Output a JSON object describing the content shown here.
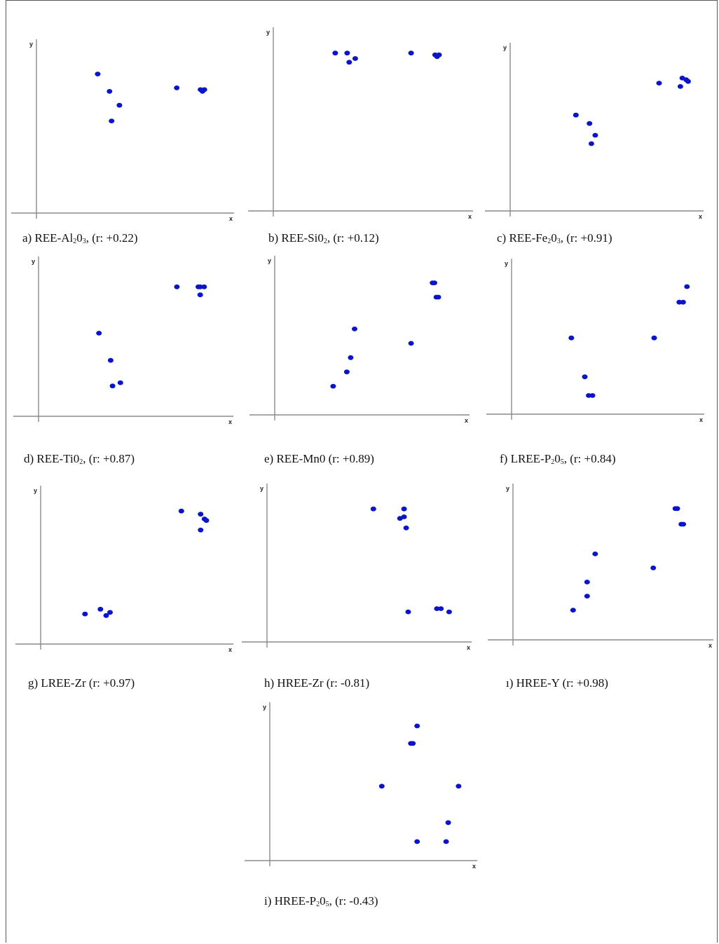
{
  "colors": {
    "point": "#0a14c8",
    "axis": "#8a8a8a",
    "frame": "#555555"
  },
  "chart_data": [
    {
      "id": "a",
      "type": "scatter",
      "xlabel": "x",
      "ylabel": "y",
      "caption": {
        "prefix": "a) REE-Al",
        "sub": "2",
        "mid": "0",
        "sub2": "3",
        "suffix": " (r: +0.22)"
      },
      "x": [
        0.31,
        0.37,
        0.42,
        0.38,
        0.71,
        0.83,
        0.84,
        0.85
      ],
      "y": [
        0.8,
        0.7,
        0.62,
        0.53,
        0.72,
        0.71,
        0.7,
        0.71
      ]
    },
    {
      "id": "b",
      "type": "scatter",
      "xlabel": "x",
      "ylabel": "y",
      "caption": {
        "prefix": "b) REE-Si0",
        "sub": "2",
        "mid": "",
        "sub2": "",
        "suffix": " (r: +0.12)"
      },
      "x": [
        0.31,
        0.37,
        0.38,
        0.41,
        0.69,
        0.81,
        0.82,
        0.83
      ],
      "y": [
        0.86,
        0.86,
        0.81,
        0.83,
        0.86,
        0.85,
        0.84,
        0.85
      ]
    },
    {
      "id": "c",
      "type": "scatter",
      "xlabel": "x",
      "ylabel": "y",
      "caption": {
        "prefix": "c)  REE-Fe",
        "sub": "2",
        "mid": "0",
        "sub2": "3",
        "suffix": " (r: +0.91)"
      },
      "x": [
        0.34,
        0.41,
        0.44,
        0.42,
        0.77,
        0.89,
        0.91,
        0.88,
        0.92
      ],
      "y": [
        0.57,
        0.52,
        0.45,
        0.4,
        0.76,
        0.79,
        0.78,
        0.74,
        0.77
      ]
    },
    {
      "id": "d",
      "type": "scatter",
      "xlabel": "x",
      "ylabel": "y",
      "caption": {
        "prefix": "d) REE-Ti0",
        "sub": "2",
        "mid": "",
        "sub2": "",
        "suffix": " (r: +0.87)"
      },
      "x": [
        0.31,
        0.37,
        0.42,
        0.38,
        0.71,
        0.82,
        0.83,
        0.85,
        0.83
      ],
      "y": [
        0.52,
        0.35,
        0.21,
        0.19,
        0.81,
        0.81,
        0.81,
        0.81,
        0.76
      ]
    },
    {
      "id": "e",
      "type": "scatter",
      "xlabel": "x",
      "ylabel": "y",
      "caption": {
        "prefix": "e) REE-Mn0",
        "sub": "",
        "mid": "",
        "sub2": "",
        "suffix": " (r: +0.89)"
      },
      "x": [
        0.3,
        0.37,
        0.39,
        0.41,
        0.7,
        0.81,
        0.82,
        0.83,
        0.84
      ],
      "y": [
        0.18,
        0.27,
        0.36,
        0.54,
        0.45,
        0.83,
        0.83,
        0.74,
        0.74
      ]
    },
    {
      "id": "f",
      "type": "scatter",
      "xlabel": "x",
      "ylabel": "y",
      "caption": {
        "prefix": "f) LREE-P",
        "sub": "2",
        "mid": "0",
        "sub2": "5",
        "suffix": " (r: +0.84)"
      },
      "x": [
        0.31,
        0.38,
        0.4,
        0.42,
        0.74,
        0.87,
        0.89,
        0.91
      ],
      "y": [
        0.49,
        0.24,
        0.12,
        0.12,
        0.49,
        0.72,
        0.72,
        0.82
      ]
    },
    {
      "id": "g",
      "type": "scatter",
      "xlabel": "x",
      "ylabel": "y",
      "caption": {
        "prefix": "g)  LREE-Zr",
        "sub": "",
        "mid": "",
        "sub2": "",
        "suffix": " (r: +0.97)"
      },
      "x": [
        0.23,
        0.31,
        0.34,
        0.36,
        0.73,
        0.83,
        0.85,
        0.86,
        0.83
      ],
      "y": [
        0.19,
        0.22,
        0.18,
        0.2,
        0.84,
        0.82,
        0.79,
        0.78,
        0.72
      ]
    },
    {
      "id": "h",
      "type": "scatter",
      "xlabel": "x",
      "ylabel": "y",
      "caption": {
        "prefix": "h) HREE-Zr",
        "sub": "",
        "mid": "",
        "sub2": "",
        "suffix": " (r: -0.81)"
      },
      "x": [
        0.52,
        0.65,
        0.67,
        0.67,
        0.68,
        0.69,
        0.83,
        0.85,
        0.89
      ],
      "y": [
        0.84,
        0.78,
        0.84,
        0.79,
        0.72,
        0.19,
        0.21,
        0.21,
        0.19
      ]
    },
    {
      "id": "i",
      "type": "scatter",
      "xlabel": "x",
      "ylabel": "y",
      "caption": {
        "prefix": "ı) HREE-Y",
        "sub": "",
        "mid": "",
        "sub2": "",
        "suffix": " (r: +0.98)"
      },
      "x": [
        0.3,
        0.37,
        0.37,
        0.41,
        0.7,
        0.81,
        0.82,
        0.84,
        0.85
      ],
      "y": [
        0.19,
        0.28,
        0.37,
        0.55,
        0.46,
        0.84,
        0.84,
        0.74,
        0.74
      ]
    },
    {
      "id": "j",
      "type": "scatter",
      "xlabel": "x",
      "ylabel": "y",
      "caption": {
        "prefix": "i) HREE-P",
        "sub": "2",
        "mid": "0",
        "sub2": "5",
        "suffix": " (r: -0.43)"
      },
      "x": [
        0.54,
        0.68,
        0.69,
        0.71,
        0.71,
        0.85,
        0.86,
        0.91
      ],
      "y": [
        0.47,
        0.74,
        0.74,
        0.85,
        0.12,
        0.12,
        0.24,
        0.47
      ]
    }
  ]
}
